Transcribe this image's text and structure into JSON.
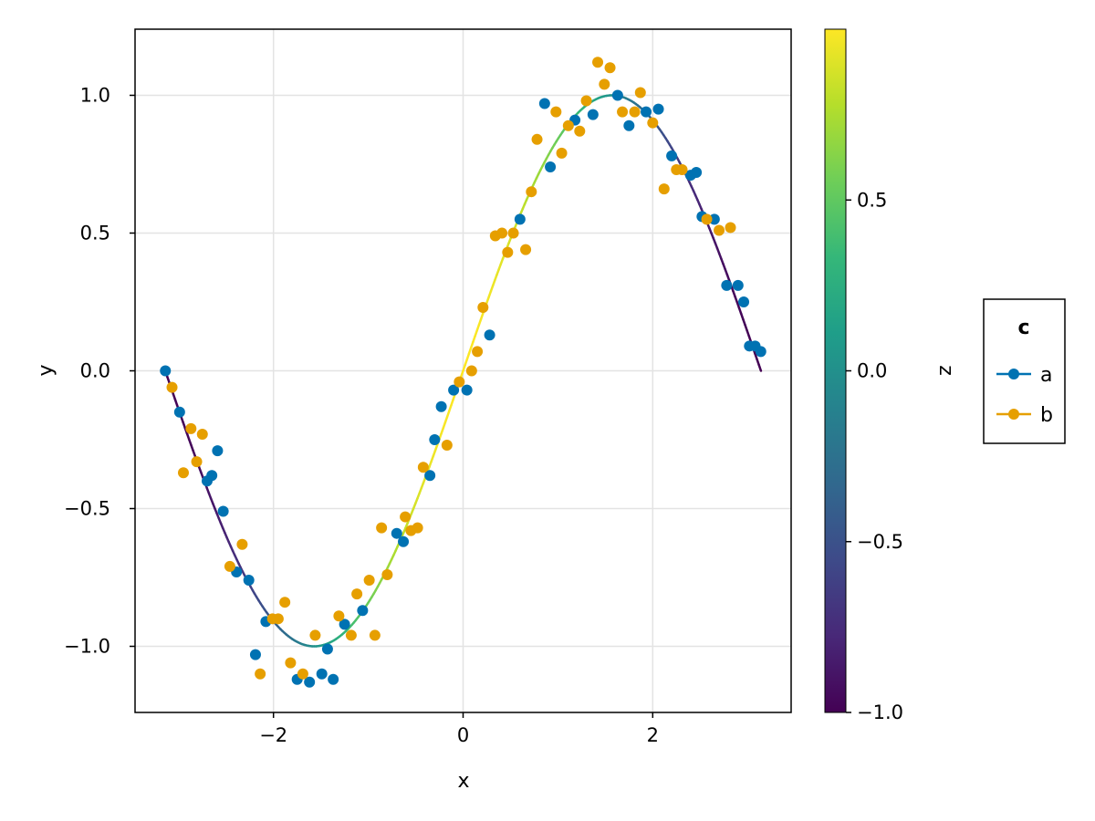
{
  "chart_data": {
    "type": "scatter",
    "title": "",
    "xlabel": "x",
    "ylabel": "y",
    "xlim": [
      -3.46,
      3.46
    ],
    "ylim": [
      -1.24,
      1.24
    ],
    "xticks": [
      -2,
      0,
      2
    ],
    "xtick_labels": [
      "−2",
      "0",
      "2"
    ],
    "yticks": [
      -1.0,
      -0.5,
      0.0,
      0.5,
      1.0
    ],
    "ytick_labels": [
      "−1.0",
      "−0.5",
      "0.0",
      "0.5",
      "1.0"
    ],
    "grid": true,
    "line": {
      "function": "sin(x)",
      "x_range": [
        -3.14159,
        3.14159
      ],
      "color_variable": "cos(x)"
    },
    "colorbar": {
      "label": "z",
      "range": [
        -1.0,
        1.0
      ],
      "ticks": [
        -1.0,
        -0.5,
        0.0,
        0.5
      ],
      "tick_labels": [
        "−1.0",
        "−0.5",
        "0.0",
        "0.5"
      ],
      "colormap": [
        "#440154",
        "#482878",
        "#3e4a89",
        "#31688e",
        "#26828e",
        "#1f9e89",
        "#35b779",
        "#6ece58",
        "#b5de2b",
        "#fde725"
      ]
    },
    "legend": {
      "title": "c",
      "placement": "right"
    },
    "series": [
      {
        "name": "a",
        "color": "#0072b2",
        "points": [
          [
            -3.14,
            0.0
          ],
          [
            -2.99,
            -0.15
          ],
          [
            -2.7,
            -0.4
          ],
          [
            -2.65,
            -0.38
          ],
          [
            -2.59,
            -0.29
          ],
          [
            -2.53,
            -0.51
          ],
          [
            -2.39,
            -0.73
          ],
          [
            -2.26,
            -0.76
          ],
          [
            -2.19,
            -1.03
          ],
          [
            -2.08,
            -0.91
          ],
          [
            -1.75,
            -1.12
          ],
          [
            -1.62,
            -1.13
          ],
          [
            -1.49,
            -1.1
          ],
          [
            -1.43,
            -1.01
          ],
          [
            -1.37,
            -1.12
          ],
          [
            -1.25,
            -0.92
          ],
          [
            -1.06,
            -0.87
          ],
          [
            -0.7,
            -0.59
          ],
          [
            -0.63,
            -0.62
          ],
          [
            -0.3,
            -0.25
          ],
          [
            -0.23,
            -0.13
          ],
          [
            -0.35,
            -0.38
          ],
          [
            -0.1,
            -0.07
          ],
          [
            0.04,
            -0.07
          ],
          [
            0.28,
            0.13
          ],
          [
            0.6,
            0.55
          ],
          [
            0.86,
            0.97
          ],
          [
            0.92,
            0.74
          ],
          [
            1.18,
            0.91
          ],
          [
            1.37,
            0.93
          ],
          [
            1.63,
            1.0
          ],
          [
            1.75,
            0.89
          ],
          [
            1.93,
            0.94
          ],
          [
            2.06,
            0.95
          ],
          [
            2.2,
            0.78
          ],
          [
            2.4,
            0.71
          ],
          [
            2.46,
            0.72
          ],
          [
            2.52,
            0.56
          ],
          [
            2.65,
            0.55
          ],
          [
            2.78,
            0.31
          ],
          [
            2.9,
            0.31
          ],
          [
            2.96,
            0.25
          ],
          [
            3.02,
            0.09
          ],
          [
            3.08,
            0.09
          ],
          [
            3.14,
            0.07
          ]
        ]
      },
      {
        "name": "b",
        "color": "#e69f00",
        "points": [
          [
            -3.07,
            -0.06
          ],
          [
            -2.95,
            -0.37
          ],
          [
            -2.87,
            -0.21
          ],
          [
            -2.81,
            -0.33
          ],
          [
            -2.75,
            -0.23
          ],
          [
            -2.46,
            -0.71
          ],
          [
            -2.33,
            -0.63
          ],
          [
            -2.14,
            -1.1
          ],
          [
            -2.01,
            -0.9
          ],
          [
            -1.95,
            -0.9
          ],
          [
            -1.88,
            -0.84
          ],
          [
            -1.82,
            -1.06
          ],
          [
            -1.69,
            -1.1
          ],
          [
            -1.56,
            -0.96
          ],
          [
            -1.31,
            -0.89
          ],
          [
            -1.18,
            -0.96
          ],
          [
            -1.12,
            -0.81
          ],
          [
            -0.99,
            -0.76
          ],
          [
            -0.93,
            -0.96
          ],
          [
            -0.86,
            -0.57
          ],
          [
            -0.8,
            -0.74
          ],
          [
            -0.61,
            -0.53
          ],
          [
            -0.55,
            -0.58
          ],
          [
            -0.48,
            -0.57
          ],
          [
            -0.42,
            -0.35
          ],
          [
            -0.17,
            -0.27
          ],
          [
            -0.04,
            -0.04
          ],
          [
            0.09,
            0.0
          ],
          [
            0.15,
            0.07
          ],
          [
            0.21,
            0.23
          ],
          [
            0.34,
            0.49
          ],
          [
            0.41,
            0.5
          ],
          [
            0.47,
            0.43
          ],
          [
            0.53,
            0.5
          ],
          [
            0.66,
            0.44
          ],
          [
            0.72,
            0.65
          ],
          [
            0.78,
            0.84
          ],
          [
            0.98,
            0.94
          ],
          [
            1.04,
            0.79
          ],
          [
            1.11,
            0.89
          ],
          [
            1.23,
            0.87
          ],
          [
            1.3,
            0.98
          ],
          [
            1.42,
            1.12
          ],
          [
            1.49,
            1.04
          ],
          [
            1.55,
            1.1
          ],
          [
            1.68,
            0.94
          ],
          [
            1.81,
            0.94
          ],
          [
            1.87,
            1.01
          ],
          [
            2.0,
            0.9
          ],
          [
            2.12,
            0.66
          ],
          [
            2.25,
            0.73
          ],
          [
            2.31,
            0.73
          ],
          [
            2.57,
            0.55
          ],
          [
            2.7,
            0.51
          ],
          [
            2.82,
            0.52
          ]
        ]
      }
    ]
  }
}
